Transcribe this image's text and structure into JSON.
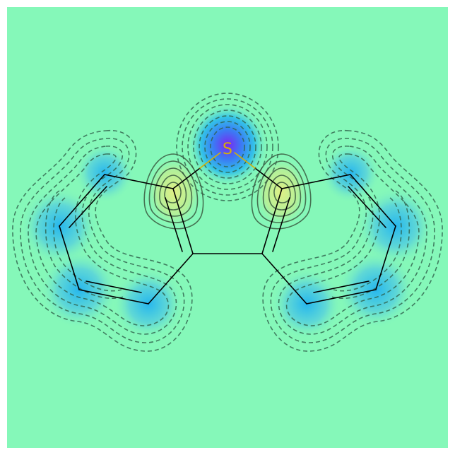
{
  "molecule": {
    "atoms": [
      {
        "element": "S",
        "label": "S",
        "color": "#d4b106"
      }
    ]
  },
  "colors": {
    "background": "#85f8b9",
    "negative_center": "#7a28f0",
    "negative_mid": "#2ec3e8",
    "positive_mid": "#c8f08a",
    "contour_stroke": "#2e5f4a",
    "bond_stroke": "#000000",
    "sulfur_bond": "#d4b106"
  }
}
